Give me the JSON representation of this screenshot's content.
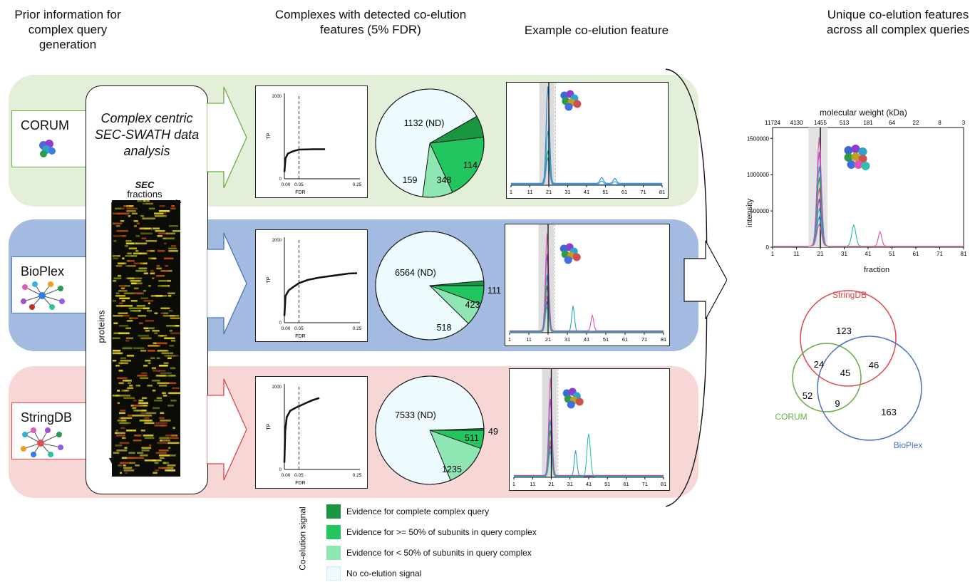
{
  "headers": {
    "prior": "Prior information for complex query generation",
    "complexes": "Complexes with detected co-elution features (5% FDR)",
    "example": "Example co-elution feature",
    "unique": "Unique co-elution features across all complex queries"
  },
  "center_box": {
    "title": "Complex centric SEC-SWATH data analysis",
    "sec_bold": "SEC",
    "fractions": "fractions",
    "proteins": "proteins"
  },
  "colors": {
    "corum_band": "#e3efd9",
    "bioplex_band": "#a4bbe1",
    "string_band": "#f7d6d6",
    "corum_line": "#6aad47",
    "bioplex_line": "#4a72c0",
    "string_line": "#e04646",
    "complete": "#1a9641",
    "half": "#22c55e",
    "less": "#8ee6b3",
    "none": "#eefcff"
  },
  "rows": [
    {
      "source": "CORUM",
      "fdr_plot": {
        "y_ticks": [
          "0",
          "2000"
        ],
        "x_ticks": [
          "0.00",
          "0.05",
          "0.25"
        ],
        "ylabel": "TP",
        "xlabel": "FDR"
      },
      "pie": {
        "none_label": "1132 (ND)",
        "less_label": "159",
        "half_label": "348",
        "complete_label": "114"
      }
    },
    {
      "source": "BioPlex",
      "fdr_plot": {
        "y_ticks": [
          "0",
          "2000"
        ],
        "x_ticks": [
          "0.00",
          "0.05",
          "0.25"
        ],
        "ylabel": "TP",
        "xlabel": "FDR"
      },
      "pie": {
        "none_label": "6564 (ND)",
        "less_label": "518",
        "half_label": "423",
        "complete_label": "111"
      }
    },
    {
      "source": "StringDB",
      "fdr_plot": {
        "y_ticks": [
          "0",
          "2000"
        ],
        "x_ticks": [
          "0.00",
          "0.05",
          "0.25"
        ],
        "ylabel": "TP",
        "xlabel": "FDR"
      },
      "pie": {
        "none_label": "7533 (ND)",
        "less_label": "1235",
        "half_label": "511",
        "complete_label": "49"
      }
    }
  ],
  "fraction_ticks": [
    "1",
    "11",
    "21",
    "31",
    "41",
    "51",
    "61",
    "71",
    "81"
  ],
  "big_plot": {
    "top_title": "molecular weight (kDa)",
    "mw_ticks": [
      "11724",
      "4130",
      "1455",
      "513",
      "181",
      "64",
      "22",
      "8",
      "3"
    ],
    "y_ticks": [
      "0",
      "500000",
      "1000000",
      "1500000"
    ],
    "ylabel": "intensity",
    "xlabel": "fraction"
  },
  "venn": {
    "labels": {
      "string": "StringDB",
      "corum": "CORUM",
      "bioplex": "BioPlex"
    },
    "values": {
      "string_only": "123",
      "string_corum": "24",
      "all": "45",
      "string_bioplex": "46",
      "corum_only": "52",
      "corum_bioplex": "9",
      "bioplex_only": "163"
    }
  },
  "legend": {
    "title": "Co-elution signal",
    "items": [
      {
        "label": "Evidence for complete complex query",
        "color": "#1a9641"
      },
      {
        "label": "Evidence for >= 50% of subunits in query complex",
        "color": "#22c55e"
      },
      {
        "label": "Evidence for < 50% of subunits in query complex",
        "color": "#8ee6b3"
      },
      {
        "label": "No co-elution signal",
        "color": "#eefcff"
      }
    ]
  }
}
